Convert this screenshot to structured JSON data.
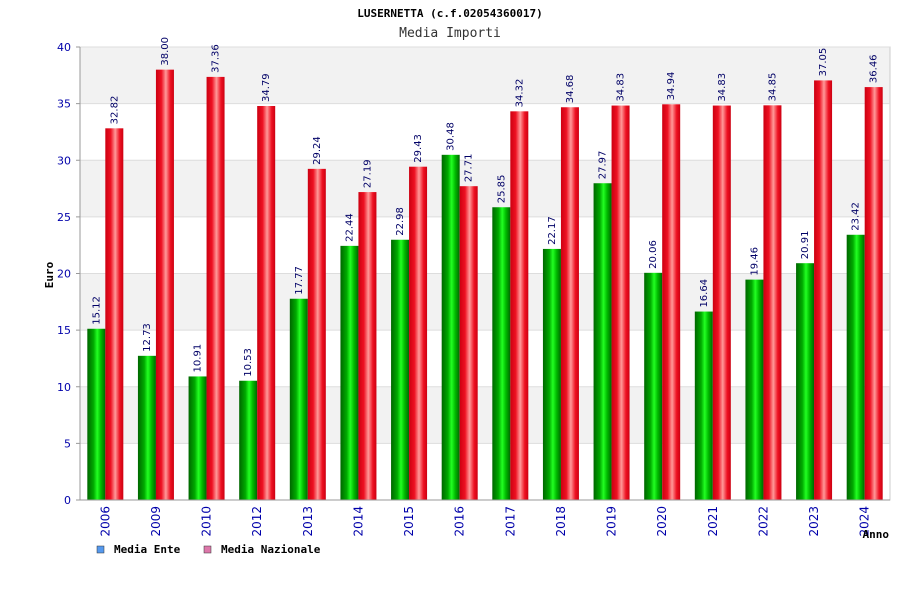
{
  "colors": {
    "series_ente": "#00aa00",
    "series_nazionale": "#ee1122",
    "legend_ente": "#5599ee",
    "legend_nazionale": "#dd77aa",
    "band": "#f2f2f2",
    "axis_text": "#0000aa"
  },
  "chart_data": {
    "type": "bar",
    "title": "LUSERNETTA (c.f.02054360017)",
    "subtitle": "Media Importi",
    "xlabel": "Anno",
    "ylabel": "Euro",
    "ylim": [
      0,
      40
    ],
    "yticks": [
      0,
      5,
      10,
      15,
      20,
      25,
      30,
      35,
      40
    ],
    "grid": true,
    "legend_position": "bottom-left",
    "categories": [
      "2006",
      "2009",
      "2010",
      "2012",
      "2013",
      "2014",
      "2015",
      "2016",
      "2017",
      "2018",
      "2019",
      "2020",
      "2021",
      "2022",
      "2023",
      "2024"
    ],
    "series": [
      {
        "name": "Media Ente",
        "values": [
          15.12,
          12.73,
          10.91,
          10.53,
          17.77,
          22.44,
          22.98,
          30.48,
          25.85,
          22.17,
          27.97,
          20.06,
          16.64,
          19.46,
          20.91,
          23.42
        ],
        "labels": [
          "15.12",
          "12.73",
          "10.91",
          "10.53",
          "17.77",
          "22.44",
          "22.98",
          "30.48",
          "25.85",
          "22.17",
          "27.97",
          "20.06",
          "16.64",
          "19.46",
          "20.91",
          "23.42"
        ]
      },
      {
        "name": "Media Nazionale",
        "values": [
          32.82,
          38.0,
          37.36,
          34.79,
          29.24,
          27.19,
          29.43,
          27.71,
          34.32,
          34.68,
          34.83,
          34.94,
          34.83,
          34.85,
          37.05,
          36.46
        ],
        "labels": [
          "32.82",
          "38.00",
          "37.36",
          "34.79",
          "29.24",
          "27.19",
          "29.43",
          "27.71",
          "34.32",
          "34.68",
          "34.83",
          "34.94",
          "34.83",
          "34.85",
          "37.05",
          "36.46"
        ]
      }
    ]
  }
}
